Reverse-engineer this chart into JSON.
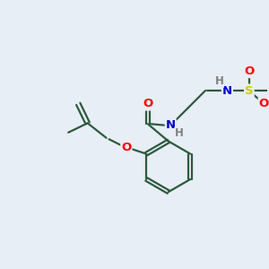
{
  "background_color": "#e8eef5",
  "bond_color": "#2d5a3d",
  "atom_colors": {
    "O": "#ff0000",
    "N": "#0000cc",
    "S": "#cccc00",
    "H": "#808080",
    "C": "#2d5a3d"
  }
}
